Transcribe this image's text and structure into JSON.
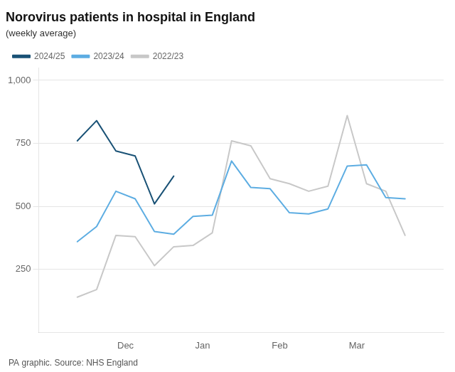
{
  "chart_data": {
    "type": "line",
    "title": "Norovirus patients in hospital in England",
    "subtitle": "(weekly average)",
    "source": "PA graphic. Source: NHS England",
    "series": [
      {
        "name": "2024/25",
        "color": "#1a5276",
        "x": [
          2,
          3,
          4,
          5,
          6,
          7
        ],
        "values": [
          760,
          840,
          720,
          700,
          510,
          620
        ]
      },
      {
        "name": "2023/24",
        "color": "#5dade2",
        "x": [
          2,
          3,
          4,
          5,
          6,
          7,
          8,
          9,
          10,
          11,
          12,
          13,
          14,
          15,
          16,
          17,
          18,
          19
        ],
        "values": [
          360,
          420,
          560,
          530,
          400,
          390,
          460,
          465,
          680,
          575,
          570,
          475,
          470,
          490,
          660,
          665,
          535,
          530
        ]
      },
      {
        "name": "2022/23",
        "color": "#c8c8c8",
        "x": [
          2,
          3,
          4,
          5,
          6,
          7,
          8,
          9,
          10,
          11,
          12,
          13,
          14,
          15,
          16,
          17,
          18,
          19
        ],
        "values": [
          140,
          170,
          385,
          380,
          265,
          340,
          345,
          395,
          760,
          740,
          610,
          590,
          560,
          580,
          860,
          590,
          560,
          385
        ]
      }
    ],
    "xlim": [
      0,
      21
    ],
    "xticks": [
      {
        "value": 4.5,
        "label": "Dec"
      },
      {
        "value": 8.5,
        "label": "Jan"
      },
      {
        "value": 12.5,
        "label": "Feb"
      },
      {
        "value": 16.5,
        "label": "Mar"
      }
    ],
    "ylim": [
      0,
      1050
    ],
    "yticks": [
      250,
      500,
      750,
      {
        "value": 1000,
        "label": "1,000"
      }
    ],
    "grid": true,
    "legend": "top"
  }
}
